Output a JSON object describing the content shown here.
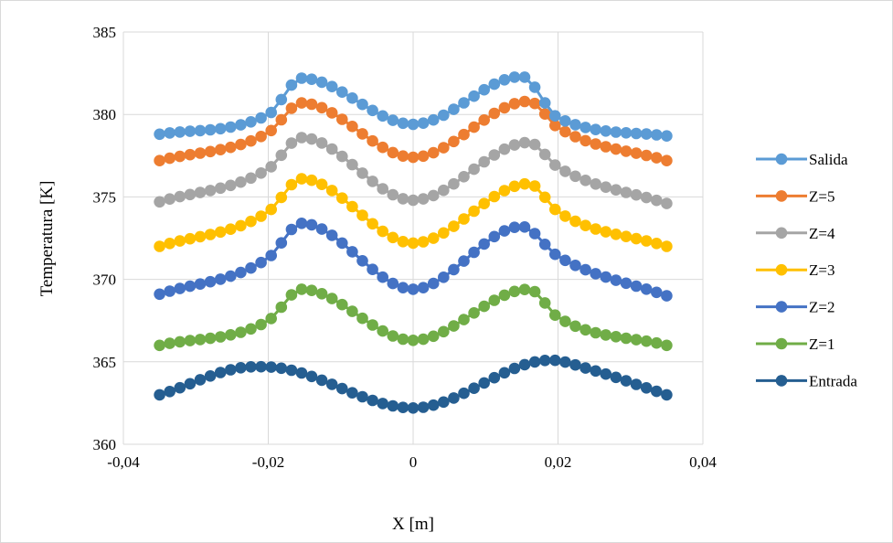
{
  "chart_data": {
    "type": "line",
    "title": "",
    "xlabel": "X [m]",
    "ylabel": "Temperatura [K]",
    "xlim": [
      -0.04,
      0.04
    ],
    "ylim": [
      360,
      385
    ],
    "x_ticks": [
      -0.04,
      -0.02,
      0,
      0.02,
      0.04
    ],
    "x_tick_labels": [
      "-0,04",
      "-0,02",
      "0",
      "0,02",
      "0,04"
    ],
    "y_ticks": [
      360,
      365,
      370,
      375,
      380,
      385
    ],
    "y_tick_labels": [
      "360",
      "365",
      "370",
      "375",
      "380",
      "385"
    ],
    "grid": true,
    "legend_position": "right",
    "markers": "circle",
    "x_range": [
      -0.035,
      0.035
    ],
    "points_per_series": 51,
    "series": [
      {
        "name": "Salida",
        "color": "#5b9bd5",
        "x": [
          -0.035,
          -0.02,
          -0.0154,
          0,
          0.015,
          0.02,
          0.035
        ],
        "y": [
          378.8,
          380.0,
          382.2,
          379.4,
          382.3,
          379.8,
          378.7
        ]
      },
      {
        "name": "Z=5",
        "color": "#ed7d31",
        "x": [
          -0.035,
          -0.02,
          -0.0154,
          0,
          0.016,
          0.02,
          0.035
        ],
        "y": [
          377.2,
          378.9,
          380.7,
          377.4,
          380.8,
          379.2,
          377.2
        ]
      },
      {
        "name": "Z=4",
        "color": "#a5a5a5",
        "x": [
          -0.035,
          -0.02,
          -0.0154,
          0,
          0.016,
          0.02,
          0.035
        ],
        "y": [
          374.7,
          376.7,
          378.6,
          374.8,
          378.3,
          376.8,
          374.6
        ]
      },
      {
        "name": "Z=3",
        "color": "#ffc000",
        "x": [
          -0.035,
          -0.02,
          -0.0154,
          0,
          0.016,
          0.02,
          0.035
        ],
        "y": [
          372.0,
          374.1,
          376.1,
          372.2,
          375.8,
          374.1,
          372.0
        ]
      },
      {
        "name": "Z=2",
        "color": "#4472c4",
        "x": [
          -0.035,
          -0.02,
          -0.0154,
          0,
          0.015,
          0.02,
          0.035
        ],
        "y": [
          369.1,
          371.3,
          373.4,
          369.4,
          373.2,
          371.4,
          369.0
        ]
      },
      {
        "name": "Z=1",
        "color": "#70ad47",
        "x": [
          -0.035,
          -0.02,
          -0.0154,
          0,
          0.016,
          0.02,
          0.035
        ],
        "y": [
          366.0,
          367.5,
          369.4,
          366.3,
          369.4,
          367.7,
          366.0
        ]
      },
      {
        "name": "Entrada",
        "color": "#255e91",
        "x": [
          -0.035,
          -0.022,
          -0.018,
          0,
          0.019,
          0.024,
          0.035
        ],
        "y": [
          363.0,
          364.7,
          364.6,
          362.2,
          365.1,
          364.6,
          363.0
        ]
      }
    ]
  }
}
